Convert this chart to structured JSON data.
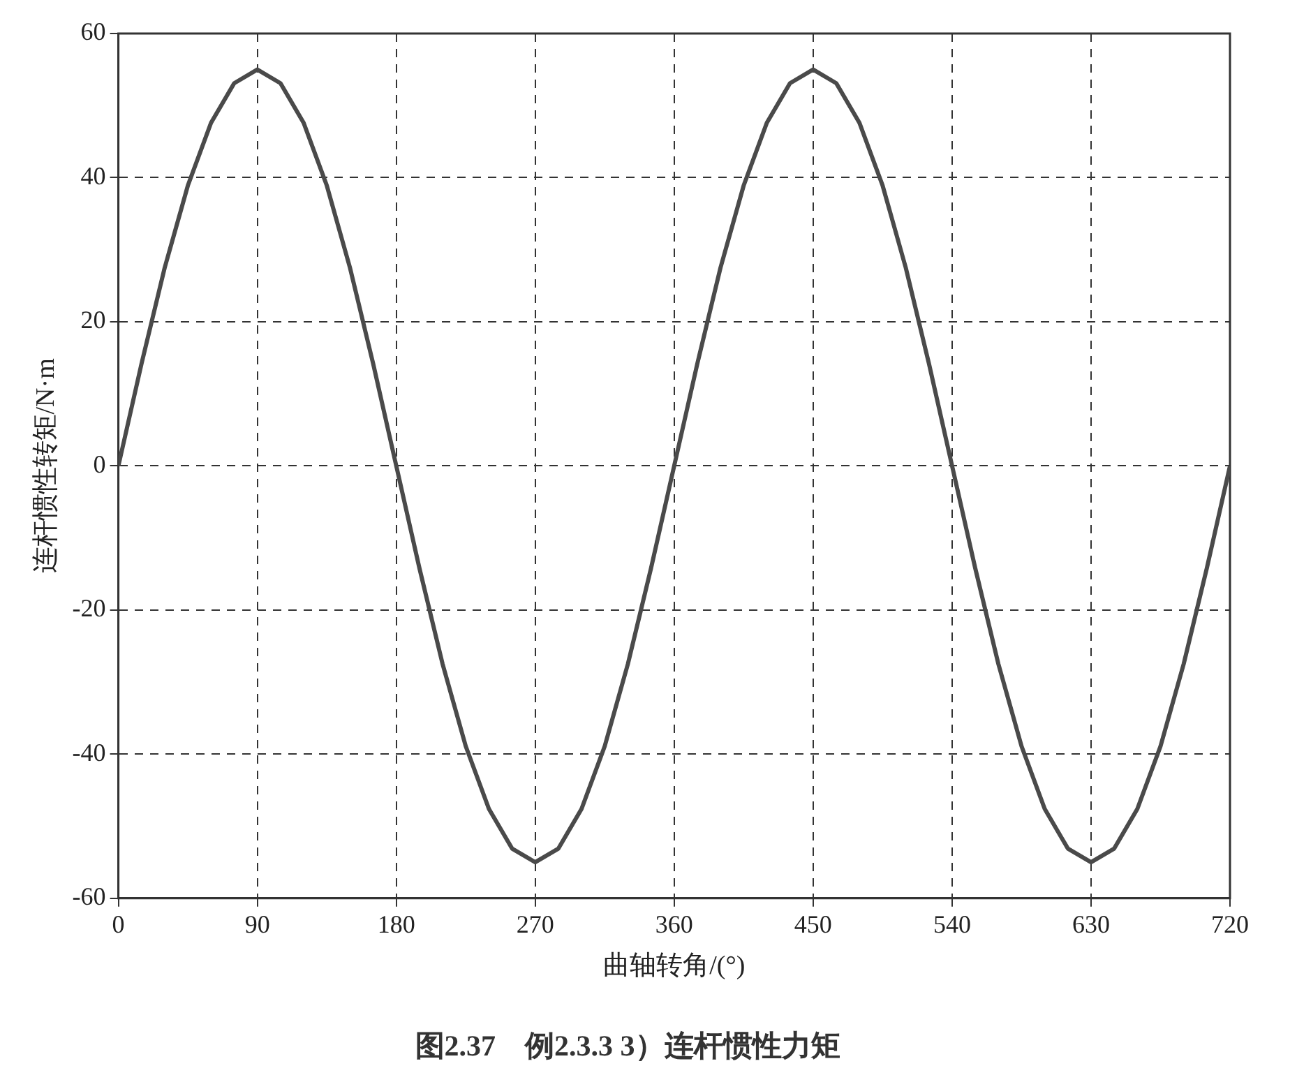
{
  "chart_data": {
    "type": "line",
    "title": "图2.37　例2.3.3 3）连杆惯性力矩",
    "xlabel": "曲轴转角/(°)",
    "ylabel": "连杆惯性转矩/N·m",
    "x": [
      0,
      15,
      30,
      45,
      60,
      75,
      90,
      105,
      120,
      135,
      150,
      165,
      180,
      195,
      210,
      225,
      240,
      255,
      270,
      285,
      300,
      315,
      330,
      345,
      360,
      375,
      390,
      405,
      420,
      435,
      450,
      465,
      480,
      495,
      510,
      525,
      540,
      555,
      570,
      585,
      600,
      615,
      630,
      645,
      660,
      675,
      690,
      705,
      720
    ],
    "series": [
      {
        "color": "#4a4a4a",
        "values": [
          0,
          14.2,
          27.5,
          38.9,
          47.6,
          53.1,
          55,
          53.1,
          47.6,
          38.9,
          27.5,
          14.2,
          0,
          -14.2,
          -27.5,
          -38.9,
          -47.6,
          -53.1,
          -55,
          -53.1,
          -47.6,
          -38.9,
          -27.5,
          -14.2,
          0,
          14.2,
          27.5,
          38.9,
          47.6,
          53.1,
          55,
          53.1,
          47.6,
          38.9,
          27.5,
          14.2,
          0,
          -14.2,
          -27.5,
          -38.9,
          -47.6,
          -53.1,
          -55,
          -53.1,
          -47.6,
          -38.9,
          -27.5,
          -14.2,
          0
        ]
      }
    ],
    "xlim": [
      0,
      720
    ],
    "xticks": [
      0,
      90,
      180,
      270,
      360,
      450,
      540,
      630,
      720
    ],
    "ylim": [
      -60,
      60
    ],
    "yticks": [
      -60,
      -40,
      -20,
      0,
      20,
      40,
      60
    ],
    "grid": true,
    "legend": false,
    "marker": "none",
    "line_style": "solid"
  }
}
